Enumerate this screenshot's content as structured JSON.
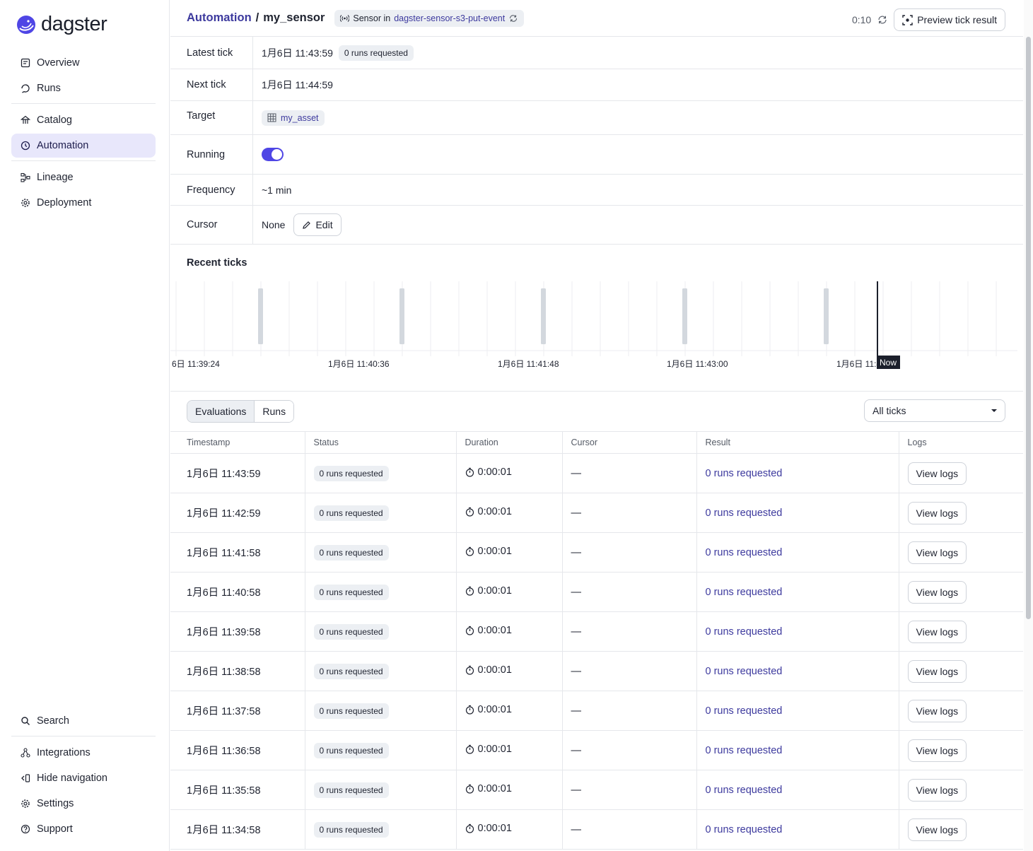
{
  "app": {
    "name": "dagster"
  },
  "sidebar": {
    "top_items": [
      {
        "label": "Overview",
        "icon": "overview-icon"
      },
      {
        "label": "Runs",
        "icon": "runs-icon"
      }
    ],
    "mid_items": [
      {
        "label": "Catalog",
        "icon": "catalog-icon"
      },
      {
        "label": "Automation",
        "icon": "automation-icon",
        "active": true
      }
    ],
    "low_items": [
      {
        "label": "Lineage",
        "icon": "lineage-icon"
      },
      {
        "label": "Deployment",
        "icon": "gear-icon"
      }
    ],
    "bottom_items": [
      {
        "label": "Search",
        "icon": "search-icon"
      },
      {
        "label": "Integrations",
        "icon": "integrations-icon"
      },
      {
        "label": "Hide navigation",
        "icon": "hide-nav-icon"
      },
      {
        "label": "Settings",
        "icon": "settings-icon"
      },
      {
        "label": "Support",
        "icon": "help-icon"
      }
    ]
  },
  "header": {
    "breadcrumb_parent": "Automation",
    "breadcrumb_sep": "/",
    "title": "my_sensor",
    "sensor_tag_prefix": "Sensor in",
    "sensor_tag_location": "dagster-sensor-s3-put-event",
    "refresh_timer": "0:10",
    "preview_button": "Preview tick result"
  },
  "properties": {
    "latest_tick_label": "Latest tick",
    "latest_tick_value": "1月6日 11:43:59",
    "latest_tick_badge": "0 runs requested",
    "next_tick_label": "Next tick",
    "next_tick_value": "1月6日 11:44:59",
    "target_label": "Target",
    "target_value": "my_asset",
    "running_label": "Running",
    "running_on": true,
    "frequency_label": "Frequency",
    "frequency_value": "~1 min",
    "cursor_label": "Cursor",
    "cursor_value": "None",
    "edit_button": "Edit"
  },
  "recent_ticks": {
    "title": "Recent ticks",
    "axis_labels": [
      "6日 11:39:24",
      "1月6日 11:40:36",
      "1月6日 11:41:48",
      "1月6日 11:43:00",
      "1月6日 11:4"
    ],
    "now_label": "Now"
  },
  "tabs": {
    "items": [
      "Evaluations",
      "Runs"
    ],
    "active": "Evaluations",
    "filter_value": "All ticks"
  },
  "table": {
    "columns": [
      "Timestamp",
      "Status",
      "Duration",
      "Cursor",
      "Result",
      "Logs"
    ],
    "rows": [
      {
        "timestamp": "1月6日 11:43:59",
        "status": "0 runs requested",
        "duration": "0:00:01",
        "cursor": "—",
        "result": "0 runs requested",
        "logs": "View logs"
      },
      {
        "timestamp": "1月6日 11:42:59",
        "status": "0 runs requested",
        "duration": "0:00:01",
        "cursor": "—",
        "result": "0 runs requested",
        "logs": "View logs"
      },
      {
        "timestamp": "1月6日 11:41:58",
        "status": "0 runs requested",
        "duration": "0:00:01",
        "cursor": "—",
        "result": "0 runs requested",
        "logs": "View logs"
      },
      {
        "timestamp": "1月6日 11:40:58",
        "status": "0 runs requested",
        "duration": "0:00:01",
        "cursor": "—",
        "result": "0 runs requested",
        "logs": "View logs"
      },
      {
        "timestamp": "1月6日 11:39:58",
        "status": "0 runs requested",
        "duration": "0:00:01",
        "cursor": "—",
        "result": "0 runs requested",
        "logs": "View logs"
      },
      {
        "timestamp": "1月6日 11:38:58",
        "status": "0 runs requested",
        "duration": "0:00:01",
        "cursor": "—",
        "result": "0 runs requested",
        "logs": "View logs"
      },
      {
        "timestamp": "1月6日 11:37:58",
        "status": "0 runs requested",
        "duration": "0:00:01",
        "cursor": "—",
        "result": "0 runs requested",
        "logs": "View logs"
      },
      {
        "timestamp": "1月6日 11:36:58",
        "status": "0 runs requested",
        "duration": "0:00:01",
        "cursor": "—",
        "result": "0 runs requested",
        "logs": "View logs"
      },
      {
        "timestamp": "1月6日 11:35:58",
        "status": "0 runs requested",
        "duration": "0:00:01",
        "cursor": "—",
        "result": "0 runs requested",
        "logs": "View logs"
      },
      {
        "timestamp": "1月6日 11:34:58",
        "status": "0 runs requested",
        "duration": "0:00:01",
        "cursor": "—",
        "result": "0 runs requested",
        "logs": "View logs"
      }
    ]
  },
  "colors": {
    "accent": "#4f46e5",
    "link": "#3d3a9e",
    "active_nav_bg": "#e8e7fb",
    "tick_bar": "#d3d8de"
  }
}
